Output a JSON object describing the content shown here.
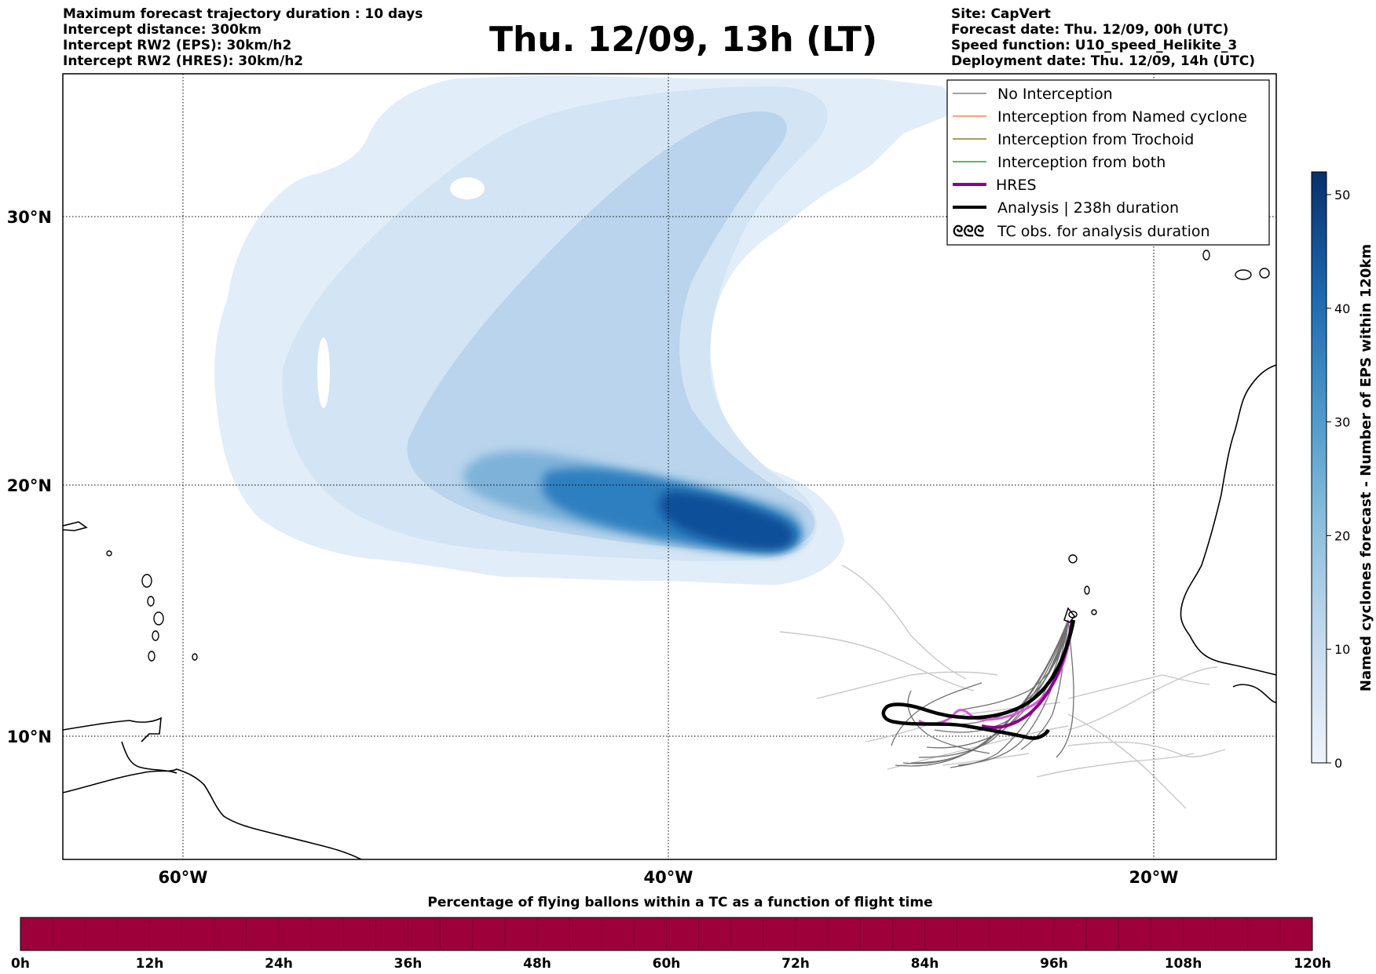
{
  "header": {
    "left_lines": [
      "Maximum forecast trajectory duration : 10 days",
      "Intercept distance: 300km",
      "Intercept RW2 (EPS):  30km/h2",
      "Intercept RW2 (HRES): 30km/h2"
    ],
    "title": "Thu. 12/09, 13h (LT)",
    "right_lines": [
      "Site: CapVert",
      "Forecast date: Thu. 12/09, 00h (UTC)",
      "Speed function: U10_speed_Helikite_3",
      "Deployment date: Thu. 12/09, 14h (UTC)"
    ]
  },
  "map": {
    "lat_labels": [
      "30°N",
      "20°N",
      "10°N"
    ],
    "lon_labels": [
      "60°W",
      "40°W",
      "20°W"
    ],
    "legend": [
      {
        "label": "No Interception",
        "color": "#808080",
        "style": "thin"
      },
      {
        "label": "Interception from Named cyclone",
        "color": "#ff7f50",
        "style": "thin"
      },
      {
        "label": "Interception from Trochoid",
        "color": "#8b7d2a",
        "style": "thin"
      },
      {
        "label": "Interception from both",
        "color": "#2ca02c",
        "style": "thin"
      },
      {
        "label": "HRES",
        "color": "#8b008b",
        "style": "thick"
      },
      {
        "label": "Analysis | 238h duration",
        "color": "#000000",
        "style": "thick"
      },
      {
        "label": "TC obs. for analysis duration",
        "color": "#000000",
        "style": "glyph",
        "glyph": "ᘓᘓᘓ"
      }
    ]
  },
  "colorbar": {
    "label": "Named cyclones forecast - Number of EPS within 120km",
    "ticks": [
      "0",
      "10",
      "20",
      "30",
      "40",
      "50"
    ],
    "min": 0,
    "max": 52,
    "color_low": "#eaf2fb",
    "color_high": "#08306b"
  },
  "flight_bar": {
    "title": "Percentage of flying ballons within a TC as a function of flight time",
    "ticks": [
      "0h",
      "12h",
      "24h",
      "36h",
      "48h",
      "60h",
      "72h",
      "84h",
      "96h",
      "108h",
      "120h"
    ],
    "color": "#9e003a"
  }
}
